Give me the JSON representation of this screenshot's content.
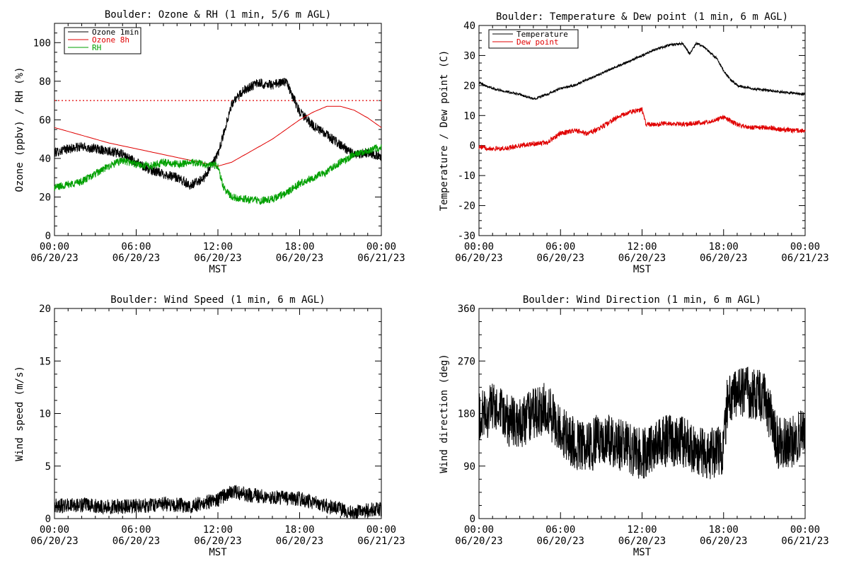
{
  "chart_data": [
    {
      "type": "line",
      "title": "Boulder: Ozone & RH (1 min, 5/6 m AGL)",
      "xlabel": "MST",
      "ylabel": "Ozone (ppbv) / RH (%)",
      "xlim": [
        "06/20/23 00:00",
        "06/21/23 00:00"
      ],
      "ylim": [
        0,
        110
      ],
      "yticks": [
        0,
        20,
        40,
        60,
        80,
        100
      ],
      "xtick_labels": [
        {
          "time": "00:00",
          "date": "06/20/23"
        },
        {
          "time": "06:00",
          "date": "06/20/23"
        },
        {
          "time": "12:00",
          "date": "06/20/23"
        },
        {
          "time": "18:00",
          "date": "06/20/23"
        },
        {
          "time": "00:00",
          "date": "06/21/23"
        }
      ],
      "reference_line": {
        "y": 70,
        "color": "#e00000",
        "style": "dotted"
      },
      "legend": "top-left",
      "series": [
        {
          "name": "Ozone 1min",
          "color": "#000000",
          "noise": 2.5,
          "x": [
            0,
            1,
            2,
            3,
            4,
            5,
            6,
            7,
            8,
            9,
            10,
            11,
            12,
            12.5,
            13,
            14,
            15,
            16,
            17,
            17.5,
            18,
            19,
            20,
            21,
            22,
            23,
            24
          ],
          "y": [
            43,
            45,
            46,
            45,
            44,
            42,
            38,
            34,
            32,
            30,
            26,
            30,
            42,
            55,
            68,
            76,
            79,
            78,
            80,
            72,
            64,
            57,
            52,
            47,
            42,
            43,
            41
          ]
        },
        {
          "name": "Ozone 8h",
          "color": "#e00000",
          "noise": 0,
          "x": [
            0,
            2,
            4,
            6,
            8,
            10,
            12,
            13,
            14,
            16,
            18,
            19,
            20,
            21,
            22,
            23,
            24
          ],
          "y": [
            56,
            52,
            48,
            45,
            42,
            39,
            36,
            38,
            42,
            50,
            60,
            64,
            67,
            67,
            65,
            61,
            56
          ]
        },
        {
          "name": "RH",
          "color": "#00a000",
          "noise": 2,
          "x": [
            0,
            2,
            3,
            4,
            5,
            6,
            7,
            8,
            9,
            10,
            11,
            12,
            12.4,
            13,
            14,
            15,
            16,
            17,
            18,
            19,
            20,
            21,
            22,
            23,
            24
          ],
          "y": [
            25,
            28,
            32,
            36,
            39,
            37,
            36,
            38,
            37,
            38,
            37,
            36,
            25,
            20,
            19,
            18,
            19,
            22,
            27,
            30,
            33,
            38,
            42,
            44,
            46
          ]
        }
      ]
    },
    {
      "type": "line",
      "title": "Boulder: Temperature & Dew point (1 min, 6 m AGL)",
      "xlabel": "MST",
      "ylabel": "Temperature / Dew point (C)",
      "xlim": [
        "06/20/23 00:00",
        "06/21/23 00:00"
      ],
      "ylim": [
        -30,
        40
      ],
      "yticks": [
        -30,
        -20,
        -10,
        0,
        10,
        20,
        30,
        40
      ],
      "xtick_labels": [
        {
          "time": "00:00",
          "date": "06/20/23"
        },
        {
          "time": "06:00",
          "date": "06/20/23"
        },
        {
          "time": "12:00",
          "date": "06/20/23"
        },
        {
          "time": "18:00",
          "date": "06/20/23"
        },
        {
          "time": "00:00",
          "date": "06/21/23"
        }
      ],
      "legend": "top-left",
      "series": [
        {
          "name": "Temperature",
          "color": "#000000",
          "noise": 0.4,
          "x": [
            0,
            1,
            2,
            3,
            4,
            5,
            6,
            7,
            8,
            9,
            10,
            11,
            12,
            13,
            14,
            15,
            15.5,
            16,
            16.5,
            17,
            17.5,
            18,
            18.5,
            19,
            20,
            21,
            22,
            23,
            24
          ],
          "y": [
            21,
            19,
            18,
            17,
            15.5,
            17,
            19,
            20,
            22,
            24,
            26,
            28,
            30,
            32,
            33.5,
            34,
            30.5,
            34,
            33,
            31,
            29,
            25,
            22,
            20,
            19,
            18.5,
            18,
            17.5,
            17
          ]
        },
        {
          "name": "Dew point",
          "color": "#e00000",
          "noise": 0.8,
          "x": [
            0,
            1,
            2,
            3,
            4,
            5,
            6,
            7,
            8,
            9,
            10,
            11,
            12,
            12.3,
            13,
            14,
            15,
            16,
            17,
            18,
            19,
            20,
            21,
            22,
            23,
            24
          ],
          "y": [
            -0.5,
            -1,
            -1,
            0,
            0.5,
            1,
            4,
            5,
            4,
            6,
            9,
            11,
            12,
            7,
            7,
            7.5,
            7,
            7.5,
            8,
            9.5,
            7,
            6,
            6,
            5.5,
            5,
            5
          ]
        }
      ]
    },
    {
      "type": "line",
      "title": "Boulder: Wind Speed (1 min, 6 m AGL)",
      "xlabel": "MST",
      "ylabel": "Wind speed (m/s)",
      "xlim": [
        "06/20/23 00:00",
        "06/21/23 00:00"
      ],
      "ylim": [
        0,
        20
      ],
      "yticks": [
        0,
        5,
        10,
        15,
        20
      ],
      "xtick_labels": [
        {
          "time": "00:00",
          "date": "06/20/23"
        },
        {
          "time": "06:00",
          "date": "06/20/23"
        },
        {
          "time": "12:00",
          "date": "06/20/23"
        },
        {
          "time": "18:00",
          "date": "06/20/23"
        },
        {
          "time": "00:00",
          "date": "06/21/23"
        }
      ],
      "series": [
        {
          "color": "#000000",
          "noise": 0.7,
          "x": [
            0,
            2,
            4,
            6,
            8,
            10,
            12,
            13,
            14,
            16,
            18,
            20,
            21,
            22,
            23,
            24
          ],
          "y": [
            1.2,
            1.3,
            1.1,
            1.2,
            1.4,
            1.2,
            1.8,
            2.6,
            2.3,
            2.0,
            1.9,
            1.2,
            0.9,
            0.6,
            0.8,
            0.9
          ]
        }
      ]
    },
    {
      "type": "line",
      "title": "Boulder: Wind Direction (1 min, 6 m AGL)",
      "xlabel": "MST",
      "ylabel": "Wind direction (deg)",
      "xlim": [
        "06/20/23 00:00",
        "06/21/23 00:00"
      ],
      "ylim": [
        0,
        360
      ],
      "yticks": [
        0,
        90,
        180,
        270,
        360
      ],
      "xtick_labels": [
        {
          "time": "00:00",
          "date": "06/20/23"
        },
        {
          "time": "06:00",
          "date": "06/20/23"
        },
        {
          "time": "12:00",
          "date": "06/20/23"
        },
        {
          "time": "18:00",
          "date": "06/20/23"
        },
        {
          "time": "00:00",
          "date": "06/21/23"
        }
      ],
      "series": [
        {
          "color": "#000000",
          "noise": 45,
          "x": [
            0,
            1,
            2,
            3,
            4,
            5,
            6,
            7,
            8,
            9,
            10,
            11,
            12,
            13,
            14,
            15,
            16,
            17,
            18,
            18.3,
            19,
            20,
            21,
            22,
            23,
            24
          ],
          "y": [
            170,
            190,
            170,
            160,
            180,
            190,
            150,
            130,
            120,
            140,
            130,
            120,
            110,
            125,
            135,
            130,
            120,
            110,
            115,
            210,
            215,
            215,
            210,
            130,
            130,
            150
          ]
        }
      ]
    }
  ]
}
